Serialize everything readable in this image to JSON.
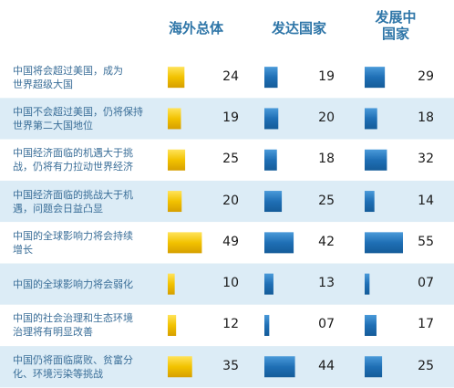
{
  "chart_data": {
    "type": "bar",
    "columns": [
      "海外总体",
      "发达国家",
      "发展中国家"
    ],
    "column_header_lines": [
      [
        "海外总体"
      ],
      [
        "发达国家"
      ],
      [
        "发展中",
        "国家"
      ]
    ],
    "categories": [
      "中国将会超过美国，成为世界超级大国",
      "中国不会超过美国，仍将保持世界第二大国地位",
      "中国经济面临的机遇大于挑战，仍将有力拉动世界经济",
      "中国经济面临的挑战大于机遇，问题会日益凸显",
      "中国的全球影响力将会持续增长",
      "中国的全球影响力将会弱化",
      "中国的社会治理和生态环境治理将有明显改善",
      "中国仍将面临腐败、贫富分化、环境污染等挑战"
    ],
    "category_lines": [
      [
        "中国将会超过美国，成为",
        "世界超级大国"
      ],
      [
        "中国不会超过美国，仍将保持",
        "世界第二大国地位"
      ],
      [
        "中国经济面临的机遇大于挑",
        "战，仍将有力拉动世界经济"
      ],
      [
        "中国经济面临的挑战大于机",
        "遇，问题会日益凸显"
      ],
      [
        "中国的全球影响力将会持续",
        "增长"
      ],
      [
        "中国的全球影响力将会弱化"
      ],
      [
        "中国的社会治理和生态环境",
        "治理将有明显改善"
      ],
      [
        "中国仍将面临腐败、贫富分",
        "化、环境污染等挑战"
      ]
    ],
    "series": [
      {
        "name": "海外总体",
        "values": [
          24,
          19,
          25,
          20,
          49,
          10,
          12,
          35
        ],
        "labels": [
          "24",
          "19",
          "25",
          "20",
          "49",
          "10",
          "12",
          "35"
        ]
      },
      {
        "name": "发达国家",
        "values": [
          19,
          20,
          18,
          25,
          42,
          13,
          7,
          44
        ],
        "labels": [
          "19",
          "20",
          "18",
          "25",
          "42",
          "13",
          "07",
          "44"
        ]
      },
      {
        "name": "发展中国家",
        "values": [
          29,
          18,
          32,
          14,
          55,
          7,
          17,
          25
        ],
        "labels": [
          "29",
          "18",
          "32",
          "14",
          "55",
          "07",
          "17",
          "25"
        ]
      }
    ],
    "colors": {
      "series_gold": "#f2c200",
      "series_blue": "#1f6fb5",
      "band_light": "#dcecf6",
      "row_text": "#3a6e98",
      "header_text": "#2f76a8"
    }
  }
}
